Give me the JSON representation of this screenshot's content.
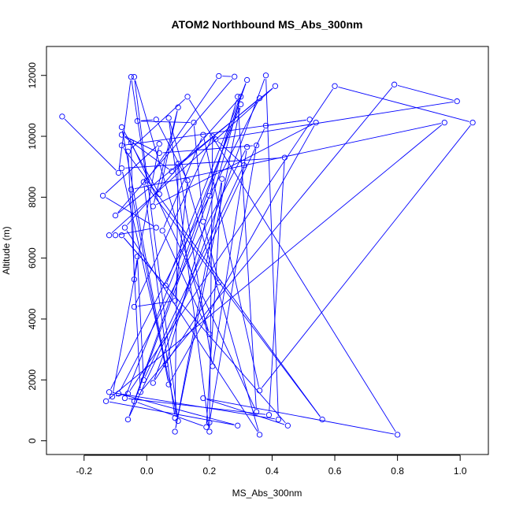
{
  "chart_data": {
    "type": "line",
    "title": "ATOM2 Northbound MS_Abs_300nm",
    "xlabel": "MS_Abs_300nm",
    "ylabel": "Altitude (m)",
    "xlim": [
      -0.32,
      1.09
    ],
    "ylim": [
      -450,
      12950
    ],
    "xticks": [
      -0.2,
      0.0,
      0.2,
      0.4,
      0.6,
      0.8,
      1.0
    ],
    "xtick_labels": [
      "-0.2",
      "0.0",
      "0.2",
      "0.4",
      "0.6",
      "0.8",
      "1.0"
    ],
    "yticks": [
      0,
      2000,
      4000,
      6000,
      8000,
      10000,
      12000
    ],
    "ytick_labels": [
      "0",
      "2000",
      "4000",
      "6000",
      "8000",
      "10000",
      "12000"
    ],
    "series_color": "#0000ff",
    "grid": false,
    "points": [
      {
        "x": -0.27,
        "y": 10650
      },
      {
        "x": -0.09,
        "y": 8800
      },
      {
        "x": -0.05,
        "y": 11950
      },
      {
        "x": 0.0,
        "y": 8550
      },
      {
        "x": 0.23,
        "y": 11980
      },
      {
        "x": 0.28,
        "y": 11960
      },
      {
        "x": -0.1,
        "y": 7400
      },
      {
        "x": 0.41,
        "y": 11650
      },
      {
        "x": -0.12,
        "y": 6750
      },
      {
        "x": -0.1,
        "y": 6750
      },
      {
        "x": 0.03,
        "y": 7000
      },
      {
        "x": -0.14,
        "y": 8050
      },
      {
        "x": 0.04,
        "y": 9750
      },
      {
        "x": -0.11,
        "y": 1450
      },
      {
        "x": -0.06,
        "y": 1550
      },
      {
        "x": 0.6,
        "y": 11650
      },
      {
        "x": 1.04,
        "y": 10450
      },
      {
        "x": 0.36,
        "y": 1650
      },
      {
        "x": 0.18,
        "y": 10050
      },
      {
        "x": 0.05,
        "y": 6900
      },
      {
        "x": 0.2,
        "y": 3500
      },
      {
        "x": -0.04,
        "y": 11950
      },
      {
        "x": 0.1,
        "y": 650
      },
      {
        "x": -0.08,
        "y": 8950
      },
      {
        "x": 0.44,
        "y": 9300
      },
      {
        "x": 0.39,
        "y": 850
      },
      {
        "x": -0.07,
        "y": 1400
      },
      {
        "x": 0.3,
        "y": 11050
      },
      {
        "x": 0.09,
        "y": 300
      },
      {
        "x": 0.24,
        "y": 8600
      },
      {
        "x": 0.19,
        "y": 450
      },
      {
        "x": -0.04,
        "y": 1300
      },
      {
        "x": 0.32,
        "y": 11850
      },
      {
        "x": 0.06,
        "y": 5100
      },
      {
        "x": -0.08,
        "y": 6750
      },
      {
        "x": 0.45,
        "y": 500
      },
      {
        "x": 0.18,
        "y": 1400
      },
      {
        "x": 0.8,
        "y": 200
      },
      {
        "x": 0.13,
        "y": 11300
      },
      {
        "x": -0.06,
        "y": 9500
      },
      {
        "x": -0.02,
        "y": 1600
      },
      {
        "x": 0.79,
        "y": 11700
      },
      {
        "x": 0.99,
        "y": 11150
      },
      {
        "x": 0.22,
        "y": 9900
      },
      {
        "x": 0.31,
        "y": 9050
      },
      {
        "x": -0.01,
        "y": 2000
      },
      {
        "x": -0.03,
        "y": 6050
      },
      {
        "x": -0.04,
        "y": 5300
      },
      {
        "x": -0.05,
        "y": 9800
      },
      {
        "x": 0.35,
        "y": 950
      },
      {
        "x": 0.29,
        "y": 11300
      },
      {
        "x": 0.2,
        "y": 8050
      },
      {
        "x": -0.06,
        "y": 700
      },
      {
        "x": 0.38,
        "y": 10350
      },
      {
        "x": 0.52,
        "y": 10550
      },
      {
        "x": -0.08,
        "y": 9700
      },
      {
        "x": 0.56,
        "y": 700
      },
      {
        "x": -0.01,
        "y": 8500
      },
      {
        "x": 0.09,
        "y": 750
      },
      {
        "x": 0.1,
        "y": 9100
      },
      {
        "x": 0.21,
        "y": 2450
      },
      {
        "x": 0.32,
        "y": 9650
      },
      {
        "x": -0.09,
        "y": 1550
      },
      {
        "x": 0.29,
        "y": 500
      },
      {
        "x": -0.13,
        "y": 1300
      },
      {
        "x": 0.95,
        "y": 10450
      },
      {
        "x": -0.05,
        "y": 8250
      },
      {
        "x": 0.07,
        "y": 1850
      },
      {
        "x": 0.54,
        "y": 10450
      },
      {
        "x": 0.02,
        "y": 7700
      },
      {
        "x": 0.1,
        "y": 10950
      },
      {
        "x": 0.04,
        "y": 8100
      },
      {
        "x": -0.08,
        "y": 10300
      },
      {
        "x": 0.06,
        "y": 2500
      },
      {
        "x": 0.3,
        "y": 11300
      },
      {
        "x": -0.07,
        "y": 7000
      },
      {
        "x": 0.36,
        "y": 200
      },
      {
        "x": 0.07,
        "y": 10600
      },
      {
        "x": 0.2,
        "y": 300
      },
      {
        "x": 0.21,
        "y": 10000
      },
      {
        "x": -0.04,
        "y": 4400
      },
      {
        "x": 0.09,
        "y": 4600
      },
      {
        "x": 0.13,
        "y": 8550
      },
      {
        "x": 0.03,
        "y": 10550
      },
      {
        "x": -0.03,
        "y": 10500
      },
      {
        "x": 0.15,
        "y": 10450
      },
      {
        "x": 0.18,
        "y": 7200
      },
      {
        "x": 0.23,
        "y": 5200
      },
      {
        "x": 0.02,
        "y": 1900
      },
      {
        "x": 0.38,
        "y": 12000
      },
      {
        "x": 0.42,
        "y": 700
      },
      {
        "x": -0.12,
        "y": 1600
      },
      {
        "x": 0.36,
        "y": 11250
      },
      {
        "x": 0.08,
        "y": 8850
      },
      {
        "x": -0.08,
        "y": 10050
      },
      {
        "x": 0.04,
        "y": 9450
      },
      {
        "x": 0.35,
        "y": 9700
      },
      {
        "x": 0.2,
        "y": 600
      }
    ]
  }
}
